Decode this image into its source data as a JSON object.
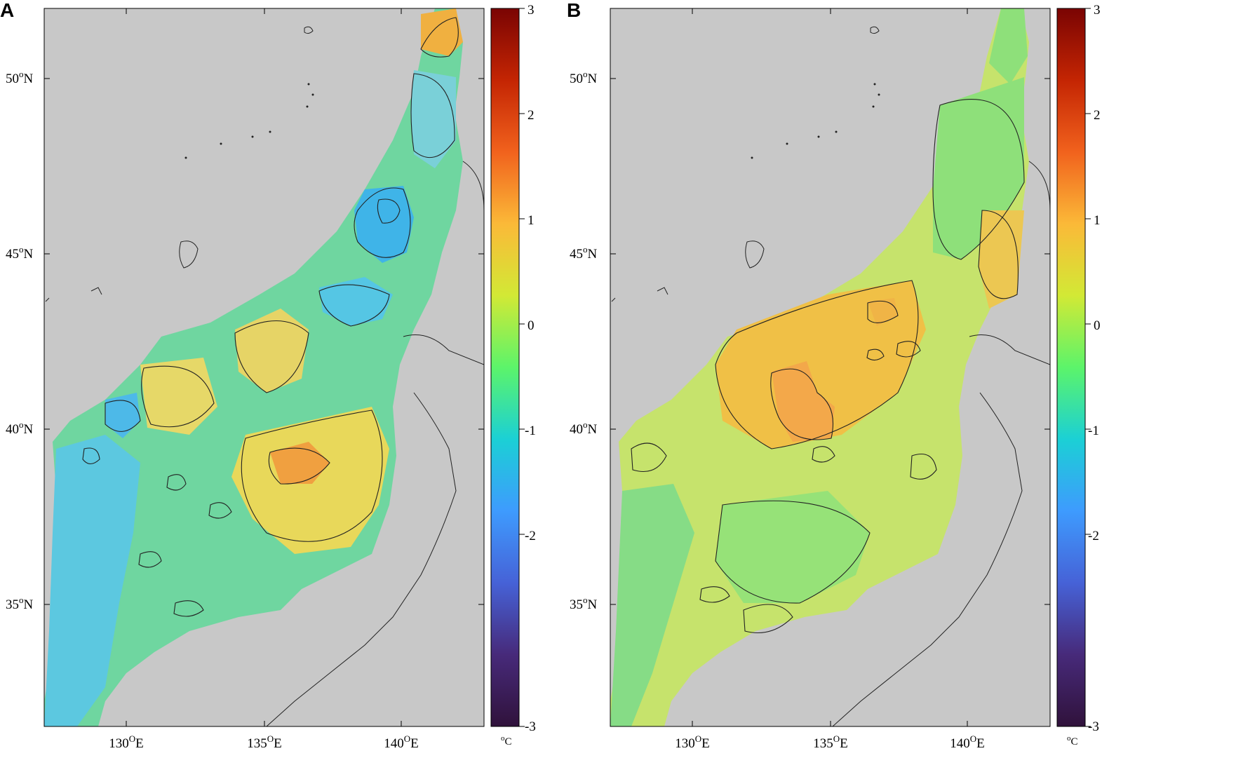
{
  "panels": [
    {
      "letter": "A",
      "lat_labels": [
        {
          "deg": "50",
          "sup": "o",
          "hemi": "N"
        },
        {
          "deg": "45",
          "sup": "o",
          "hemi": "N"
        },
        {
          "deg": "40",
          "sup": "o",
          "hemi": "N"
        },
        {
          "deg": "35",
          "sup": "o",
          "hemi": "N"
        }
      ],
      "lon_labels": [
        {
          "deg": "130",
          "sup": "O",
          "hemi": "E"
        },
        {
          "deg": "135",
          "sup": "O",
          "hemi": "E"
        },
        {
          "deg": "140",
          "sup": "O",
          "hemi": "E"
        }
      ]
    },
    {
      "letter": "B",
      "lat_labels": [
        {
          "deg": "50",
          "sup": "o",
          "hemi": "N"
        },
        {
          "deg": "45",
          "sup": "o",
          "hemi": "N"
        },
        {
          "deg": "40",
          "sup": "o",
          "hemi": "N"
        },
        {
          "deg": "35",
          "sup": "o",
          "hemi": "N"
        }
      ],
      "lon_labels": [
        {
          "deg": "130",
          "sup": "O",
          "hemi": "E"
        },
        {
          "deg": "135",
          "sup": "O",
          "hemi": "E"
        },
        {
          "deg": "140",
          "sup": "O",
          "hemi": "E"
        }
      ]
    }
  ],
  "colorbar": {
    "ticks": [
      "3",
      "2",
      "1",
      "0",
      "-1",
      "-2",
      "-3"
    ],
    "unit_sup": "o",
    "unit": "C",
    "colors": [
      "#7a0403",
      "#c42503",
      "#f1621d",
      "#fbb938",
      "#d2e935",
      "#a4fc3c",
      "#46f784",
      "#1bd0d5",
      "#3e9bfe",
      "#4662d7",
      "#472a7a",
      "#30123b"
    ]
  },
  "map_colors": {
    "land": "#c8c8c8",
    "sea_a": "#7fdc8c",
    "sea_b": "#cbe36a",
    "coast": "#222222"
  }
}
